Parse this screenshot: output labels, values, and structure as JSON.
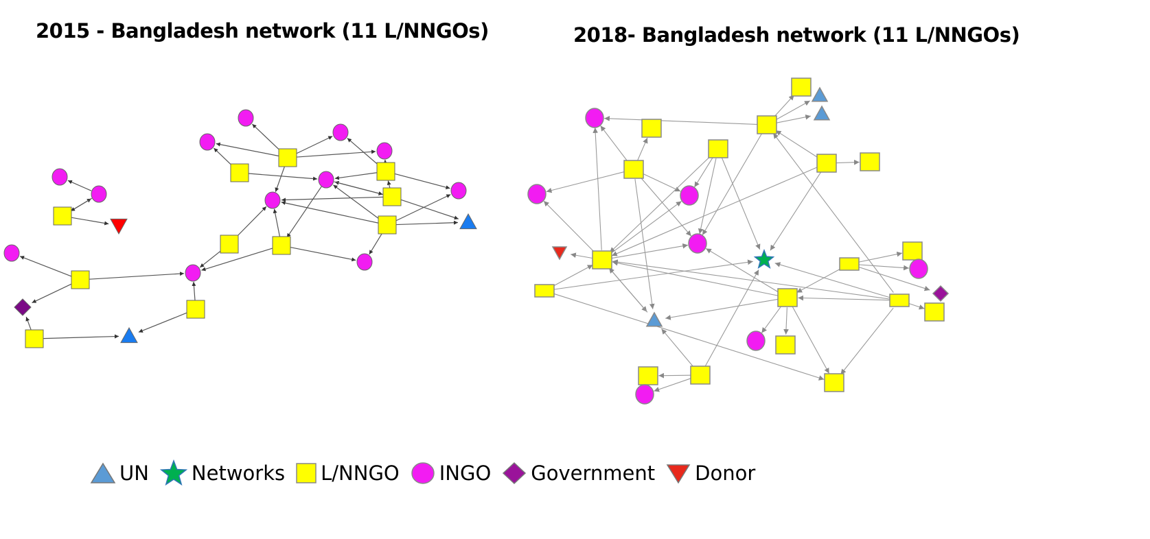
{
  "titles": {
    "left": "2015 - Bangladesh network (11 L/NNGOs)",
    "right": "2018- Bangladesh network (11 L/NNGOs)"
  },
  "colors": {
    "UN": "#5b9bd5",
    "UN_2015": "#1a7cf0",
    "Networks": "#00b050",
    "L/NNGO": "#ffff00",
    "INGO": "#f21cf2",
    "Government": "#7b0a86",
    "Government_2018": "#9a139a",
    "Donor": "#ff0000",
    "Donor_2018": "#e8291c",
    "edge_2015": "#555555",
    "edge_2018": "#999999"
  },
  "legend": [
    {
      "type": "UN",
      "label": "UN",
      "icon": "triangle-up"
    },
    {
      "type": "Networks",
      "label": "Networks",
      "icon": "star"
    },
    {
      "type": "L/NNGO",
      "label": "L/NNGO",
      "icon": "square"
    },
    {
      "type": "INGO",
      "label": "INGO",
      "icon": "circle"
    },
    {
      "type": "Government",
      "label": "Government",
      "icon": "diamond"
    },
    {
      "type": "Donor",
      "label": "Donor",
      "icon": "triangle-down"
    }
  ],
  "networks": [
    {
      "year": "2015",
      "nodes": [
        "INGO",
        "INGO",
        "INGO",
        "INGO",
        "L/NNGO",
        "L/NNGO",
        "INGO",
        "L/NNGO",
        "INGO",
        "L/NNGO",
        "INGO",
        "L/NNGO",
        "UN",
        "INGO",
        "INGO",
        "L/NNGO",
        "Donor",
        "L/NNGO",
        "L/NNGO",
        "INGO",
        "INGO",
        "L/NNGO",
        "INGO",
        "Government",
        "L/NNGO",
        "L/NNGO",
        "UN"
      ],
      "edges": [
        [
          4,
          0
        ],
        [
          4,
          1
        ],
        [
          4,
          2
        ],
        [
          4,
          3
        ],
        [
          4,
          10
        ],
        [
          5,
          1
        ],
        [
          5,
          6
        ],
        [
          7,
          2
        ],
        [
          7,
          3
        ],
        [
          7,
          6
        ],
        [
          7,
          8
        ],
        [
          9,
          7
        ],
        [
          9,
          6
        ],
        [
          6,
          9
        ],
        [
          11,
          6
        ],
        [
          9,
          10
        ],
        [
          11,
          10
        ],
        [
          9,
          12
        ],
        [
          11,
          12
        ],
        [
          11,
          8
        ],
        [
          11,
          19
        ],
        [
          18,
          10
        ],
        [
          6,
          18
        ],
        [
          18,
          22
        ],
        [
          18,
          19
        ],
        [
          17,
          10
        ],
        [
          17,
          22
        ],
        [
          21,
          20
        ],
        [
          21,
          22
        ],
        [
          21,
          23
        ],
        [
          25,
          23
        ],
        [
          25,
          26
        ],
        [
          24,
          22
        ],
        [
          24,
          26
        ],
        [
          15,
          14
        ],
        [
          14,
          13
        ],
        [
          15,
          16
        ],
        [
          14,
          15
        ]
      ]
    },
    {
      "year": "2018",
      "nodes": [
        "L/NNGO",
        "UN",
        "UN",
        "L/NNGO",
        "INGO",
        "L/NNGO",
        "L/NNGO",
        "L/NNGO",
        "L/NNGO",
        "L/NNGO",
        "INGO",
        "INGO",
        "INGO",
        "Donor",
        "L/NNGO",
        "Networks",
        "L/NNGO",
        "L/NNGO",
        "INGO",
        "L/NNGO",
        "L/NNGO",
        "L/NNGO",
        "Government",
        "L/NNGO",
        "UN",
        "INGO",
        "L/NNGO",
        "L/NNGO",
        "L/NNGO",
        "INGO",
        "L/NNGO"
      ],
      "edges": [
        [
          3,
          0
        ],
        [
          3,
          1
        ],
        [
          3,
          2
        ],
        [
          3,
          4
        ],
        [
          3,
          12
        ],
        [
          7,
          4
        ],
        [
          7,
          5
        ],
        [
          7,
          10
        ],
        [
          7,
          11
        ],
        [
          7,
          12
        ],
        [
          7,
          24
        ],
        [
          6,
          11
        ],
        [
          6,
          12
        ],
        [
          6,
          15
        ],
        [
          6,
          14
        ],
        [
          8,
          9
        ],
        [
          8,
          3
        ],
        [
          8,
          15
        ],
        [
          8,
          14
        ],
        [
          14,
          4
        ],
        [
          14,
          10
        ],
        [
          14,
          11
        ],
        [
          14,
          12
        ],
        [
          14,
          13
        ],
        [
          14,
          24
        ],
        [
          24,
          14
        ],
        [
          19,
          14
        ],
        [
          19,
          15
        ],
        [
          19,
          30
        ],
        [
          20,
          14
        ],
        [
          20,
          12
        ],
        [
          20,
          24
        ],
        [
          20,
          25
        ],
        [
          20,
          26
        ],
        [
          20,
          30
        ],
        [
          21,
          3
        ],
        [
          21,
          14
        ],
        [
          21,
          15
        ],
        [
          21,
          20
        ],
        [
          21,
          30
        ],
        [
          21,
          23
        ],
        [
          16,
          20
        ],
        [
          16,
          17
        ],
        [
          16,
          18
        ],
        [
          16,
          22
        ],
        [
          28,
          27
        ],
        [
          28,
          29
        ],
        [
          28,
          24
        ],
        [
          28,
          15
        ]
      ]
    }
  ]
}
